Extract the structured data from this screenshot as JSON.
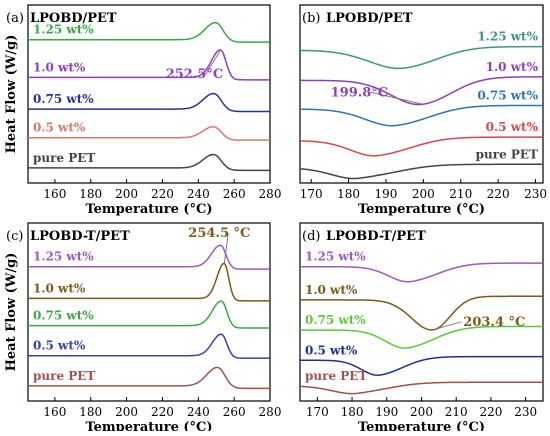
{
  "figure": {
    "panels": [
      {
        "id": "a",
        "panel_label": "(a)",
        "sample_label": "LPOBD/PET",
        "xlabel": "Temperature (°C)",
        "ylabel": "Heat Flow (W/g)",
        "xticks": [
          "160",
          "180",
          "200",
          "220",
          "240",
          "260",
          "280"
        ],
        "annotation": "252.5°C"
      },
      {
        "id": "b",
        "panel_label": "(b)",
        "sample_label": "LPOBD/PET",
        "xlabel": "Temperature (°C)",
        "ylabel": "",
        "xticks": [
          "170",
          "180",
          "190",
          "200",
          "210",
          "220",
          "230"
        ],
        "annotation": "199.8°C"
      },
      {
        "id": "c",
        "panel_label": "(c)",
        "sample_label": "LPOBD-T/PET",
        "xlabel": "Temperature (°C)",
        "ylabel": "Heat Flow (W/g)",
        "xticks": [
          "160",
          "180",
          "200",
          "220",
          "240",
          "260",
          "280"
        ],
        "annotation": "254.5 °C"
      },
      {
        "id": "d",
        "panel_label": "(d)",
        "sample_label": "LPOBD-T/PET",
        "xlabel": "Temperature (°C)",
        "ylabel": "",
        "xticks": [
          "170",
          "180",
          "190",
          "200",
          "210",
          "220",
          "230"
        ],
        "annotation": "203.4 °C"
      }
    ]
  },
  "chart_data": [
    {
      "id": "a",
      "type": "line",
      "title": "LPOBD/PET",
      "xlabel": "Temperature (°C)",
      "ylabel": "Heat Flow (W/g)",
      "xlim": [
        145,
        280
      ],
      "peak_direction": "up",
      "annotation": {
        "text": "252.5°C",
        "x": 252.5
      },
      "series": [
        {
          "name": "pure PET",
          "color": "#444444",
          "baseline": 0.2,
          "peak_x": 249.0,
          "peak_h": 0.48,
          "width_left": 6,
          "width_right": 4
        },
        {
          "name": "0.5 wt%",
          "color": "#d9776e",
          "baseline": 1.2,
          "peak_x": 249.0,
          "peak_h": 0.4,
          "width_left": 6,
          "width_right": 4
        },
        {
          "name": "0.75 wt%",
          "color": "#2233a0",
          "baseline": 2.15,
          "peak_x": 249.0,
          "peak_h": 0.55,
          "width_left": 6,
          "width_right": 4
        },
        {
          "name": "1.0 wt%",
          "color": "#8c3fbf",
          "baseline": 3.2,
          "peak_x": 252.5,
          "peak_h": 0.95,
          "width_left": 5,
          "width_right": 3
        },
        {
          "name": "1.25 wt%",
          "color": "#3aa848",
          "baseline": 4.45,
          "peak_x": 250.0,
          "peak_h": 0.6,
          "width_left": 6,
          "width_right": 4
        }
      ]
    },
    {
      "id": "b",
      "type": "line",
      "title": "LPOBD/PET",
      "xlabel": "Temperature (°C)",
      "ylabel": "",
      "xlim": [
        167,
        232
      ],
      "peak_direction": "down",
      "annotation": {
        "text": "199.8°C",
        "x": 199.8
      },
      "series": [
        {
          "name": "pure PET",
          "color": "#444444",
          "baseline": 0.2,
          "peak_x": 183.0,
          "peak_h": 0.4,
          "width_left": 7,
          "width_right": 10
        },
        {
          "name": "0.5 wt%",
          "color": "#d9464e",
          "baseline": 1.1,
          "peak_x": 188.0,
          "peak_h": 0.55,
          "width_left": 7,
          "width_right": 9
        },
        {
          "name": "0.75 wt%",
          "color": "#2f74b5",
          "baseline": 2.15,
          "peak_x": 193.0,
          "peak_h": 0.6,
          "width_left": 8,
          "width_right": 9
        },
        {
          "name": "1.0 wt%",
          "color": "#8c3fbf",
          "baseline": 3.1,
          "peak_x": 199.8,
          "peak_h": 0.85,
          "width_left": 8,
          "width_right": 8
        },
        {
          "name": "1.25 wt%",
          "color": "#3a9a78",
          "baseline": 4.1,
          "peak_x": 195.0,
          "peak_h": 0.65,
          "width_left": 9,
          "width_right": 9
        }
      ]
    },
    {
      "id": "c",
      "type": "line",
      "title": "LPOBD-T/PET",
      "xlabel": "Temperature (°C)",
      "ylabel": "Heat Flow (W/g)",
      "xlim": [
        145,
        280
      ],
      "peak_direction": "up",
      "annotation": {
        "text": "254.5 °C",
        "x": 254.5
      },
      "series": [
        {
          "name": "pure PET",
          "color": "#a0524a",
          "baseline": 0.2,
          "peak_x": 251.0,
          "peak_h": 0.65,
          "width_left": 6,
          "width_right": 4
        },
        {
          "name": "0.5 wt%",
          "color": "#3344b0",
          "baseline": 1.2,
          "peak_x": 253.0,
          "peak_h": 0.75,
          "width_left": 5,
          "width_right": 3
        },
        {
          "name": "0.75 wt%",
          "color": "#3aa848",
          "baseline": 2.2,
          "peak_x": 253.0,
          "peak_h": 0.85,
          "width_left": 5,
          "width_right": 3
        },
        {
          "name": "1.0 wt%",
          "color": "#7a5a1a",
          "baseline": 3.1,
          "peak_x": 254.5,
          "peak_h": 1.2,
          "width_left": 4,
          "width_right": 2.5
        },
        {
          "name": "1.25 wt%",
          "color": "#9b59c9",
          "baseline": 4.15,
          "peak_x": 252.5,
          "peak_h": 0.75,
          "width_left": 5,
          "width_right": 3
        }
      ]
    },
    {
      "id": "d",
      "type": "line",
      "title": "LPOBD-T/PET",
      "xlabel": "Temperature (°C)",
      "ylabel": "",
      "xlim": [
        165,
        235
      ],
      "peak_direction": "down",
      "annotation": {
        "text": "203.4 °C",
        "x": 203.4
      },
      "series": [
        {
          "name": "pure PET",
          "color": "#a0524a",
          "baseline": 0.2,
          "peak_x": 182.0,
          "peak_h": 0.3,
          "width_left": 7,
          "width_right": 9
        },
        {
          "name": "0.5 wt%",
          "color": "#1f2d9a",
          "baseline": 1.05,
          "peak_x": 188.0,
          "peak_h": 0.55,
          "width_left": 5,
          "width_right": 7
        },
        {
          "name": "0.75 wt%",
          "color": "#5cc83a",
          "baseline": 2.05,
          "peak_x": 196.0,
          "peak_h": 0.65,
          "width_left": 6,
          "width_right": 8
        },
        {
          "name": "1.0 wt%",
          "color": "#7a5a1a",
          "baseline": 3.05,
          "peak_x": 203.4,
          "peak_h": 1.05,
          "width_left": 6,
          "width_right": 5
        },
        {
          "name": "1.25 wt%",
          "color": "#9b59c9",
          "baseline": 4.15,
          "peak_x": 197.0,
          "peak_h": 0.55,
          "width_left": 6,
          "width_right": 8
        }
      ]
    }
  ]
}
